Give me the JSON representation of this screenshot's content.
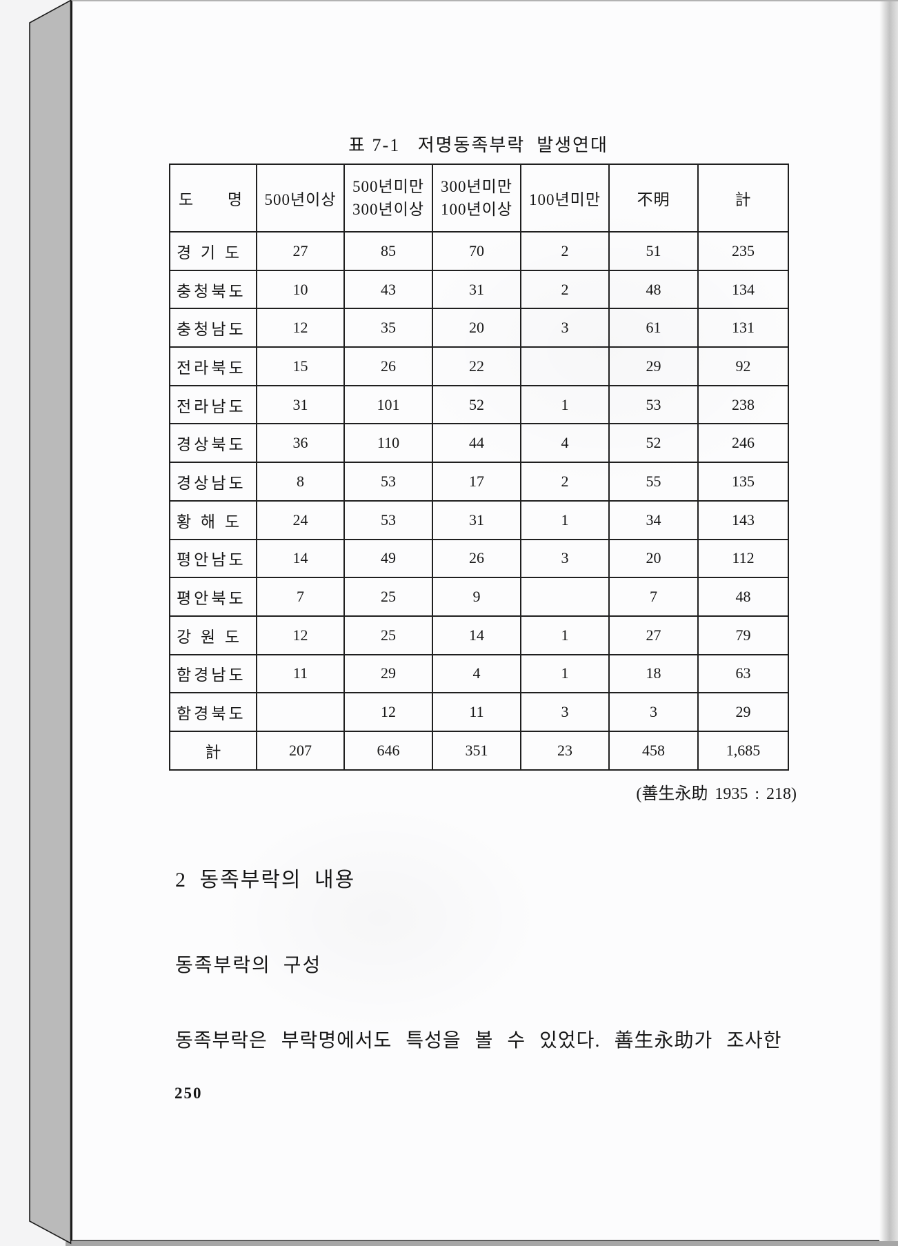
{
  "doc": {
    "table_title": "표 7-1   저명동족부락  발생연대",
    "source_note": "(善生永助 1935 : 218)",
    "section_heading": "2 동족부락의 내용",
    "sub_heading": "동족부락의 구성",
    "body_line": "동족부락은 부락명에서도 특성을 볼 수 있었다. 善生永助가 조사한",
    "page_number": "250"
  },
  "table": {
    "header": {
      "province_col": {
        "left": "도",
        "right": "명"
      },
      "value_cols": [
        {
          "lines": [
            "500년이상"
          ]
        },
        {
          "lines": [
            "500년미만",
            "300년이상"
          ]
        },
        {
          "lines": [
            "300년미만",
            "100년이상"
          ]
        },
        {
          "lines": [
            "100년미만"
          ]
        },
        {
          "lines": [
            "不明"
          ]
        },
        {
          "lines": [
            "計"
          ]
        }
      ]
    },
    "rows": [
      {
        "name": "경 기 도",
        "values": [
          "27",
          "85",
          "70",
          "2",
          "51",
          "235"
        ]
      },
      {
        "name": "충청북도",
        "values": [
          "10",
          "43",
          "31",
          "2",
          "48",
          "134"
        ]
      },
      {
        "name": "충청남도",
        "values": [
          "12",
          "35",
          "20",
          "3",
          "61",
          "131"
        ]
      },
      {
        "name": "전라북도",
        "values": [
          "15",
          "26",
          "22",
          "",
          "29",
          "92"
        ]
      },
      {
        "name": "전라남도",
        "values": [
          "31",
          "101",
          "52",
          "1",
          "53",
          "238"
        ]
      },
      {
        "name": "경상북도",
        "values": [
          "36",
          "110",
          "44",
          "4",
          "52",
          "246"
        ]
      },
      {
        "name": "경상남도",
        "values": [
          "8",
          "53",
          "17",
          "2",
          "55",
          "135"
        ]
      },
      {
        "name": "황 해 도",
        "values": [
          "24",
          "53",
          "31",
          "1",
          "34",
          "143"
        ]
      },
      {
        "name": "평안남도",
        "values": [
          "14",
          "49",
          "26",
          "3",
          "20",
          "112"
        ]
      },
      {
        "name": "평안북도",
        "values": [
          "7",
          "25",
          "9",
          "",
          "7",
          "48"
        ]
      },
      {
        "name": "강 원 도",
        "values": [
          "12",
          "25",
          "14",
          "1",
          "27",
          "79"
        ]
      },
      {
        "name": "함경남도",
        "values": [
          "11",
          "29",
          "4",
          "1",
          "18",
          "63"
        ]
      },
      {
        "name": "함경북도",
        "values": [
          "",
          "12",
          "11",
          "3",
          "3",
          "29"
        ]
      },
      {
        "name": "計",
        "values": [
          "207",
          "646",
          "351",
          "23",
          "458",
          "1,685"
        ],
        "total": true
      }
    ]
  },
  "colors": {
    "background": "#f4f4f5",
    "page": "#fcfcfd",
    "spine": "#bababa",
    "ink": "#161616"
  }
}
